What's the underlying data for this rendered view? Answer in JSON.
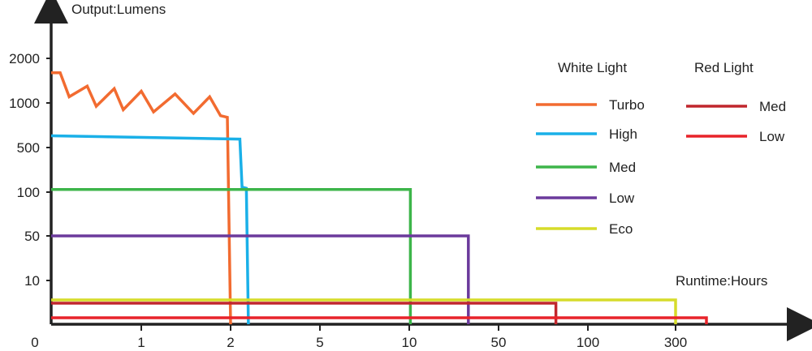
{
  "chart_data": {
    "type": "line",
    "title": "",
    "ylabel": "Output:Lumens",
    "xlabel": "Runtime:Hours",
    "x_ticks": [
      "0",
      "1",
      "2",
      "5",
      "10",
      "50",
      "100",
      "300"
    ],
    "y_ticks": [
      "2000",
      "1000",
      "500",
      "100",
      "50",
      "10"
    ],
    "scale": "stepped log (uneven tick spacing)",
    "grid": false,
    "legend": {
      "placement": "right",
      "groups": [
        {
          "title": "White Light",
          "entries": [
            "Turbo",
            "High",
            "Med",
            "Low",
            "Eco"
          ]
        },
        {
          "title": "Red Light",
          "entries": [
            "Med",
            "Low"
          ]
        }
      ]
    },
    "series": [
      {
        "name": "Turbo",
        "group": "White Light",
        "color": "#f26b30",
        "points": [
          [
            0,
            1600
          ],
          [
            0.1,
            1600
          ],
          [
            0.2,
            1100
          ],
          [
            0.4,
            1300
          ],
          [
            0.5,
            950
          ],
          [
            0.7,
            1250
          ],
          [
            0.8,
            900
          ],
          [
            1.0,
            1200
          ],
          [
            1.1,
            870
          ],
          [
            1.3,
            1150
          ],
          [
            1.5,
            850
          ],
          [
            1.7,
            1100
          ],
          [
            1.85,
            820
          ],
          [
            1.95,
            800
          ],
          [
            2.0,
            0
          ]
        ]
      },
      {
        "name": "High",
        "group": "White Light",
        "color": "#1ab0e8",
        "points": [
          [
            0,
            600
          ],
          [
            2.2,
            570
          ],
          [
            2.25,
            120
          ],
          [
            2.35,
            115
          ],
          [
            2.4,
            0
          ]
        ]
      },
      {
        "name": "Med",
        "group": "White Light",
        "color": "#3db54a",
        "points": [
          [
            0,
            110
          ],
          [
            10.2,
            110
          ],
          [
            10.2,
            0
          ]
        ]
      },
      {
        "name": "Low",
        "group": "White Light",
        "color": "#6b3a9c",
        "points": [
          [
            0,
            50
          ],
          [
            29,
            50
          ],
          [
            29,
            0
          ]
        ]
      },
      {
        "name": "Eco",
        "group": "White Light",
        "color": "#d6dc2a",
        "points": [
          [
            0,
            5
          ],
          [
            300,
            5
          ],
          [
            300,
            0
          ]
        ]
      },
      {
        "name": "Med",
        "group": "Red Light",
        "color": "#c0262d",
        "points": [
          [
            0,
            4
          ],
          [
            78,
            4
          ],
          [
            78,
            0
          ]
        ]
      },
      {
        "name": "Low",
        "group": "Red Light",
        "color": "#e8232a",
        "points": [
          [
            0,
            1
          ],
          [
            370,
            1
          ],
          [
            370,
            0
          ]
        ]
      }
    ]
  }
}
